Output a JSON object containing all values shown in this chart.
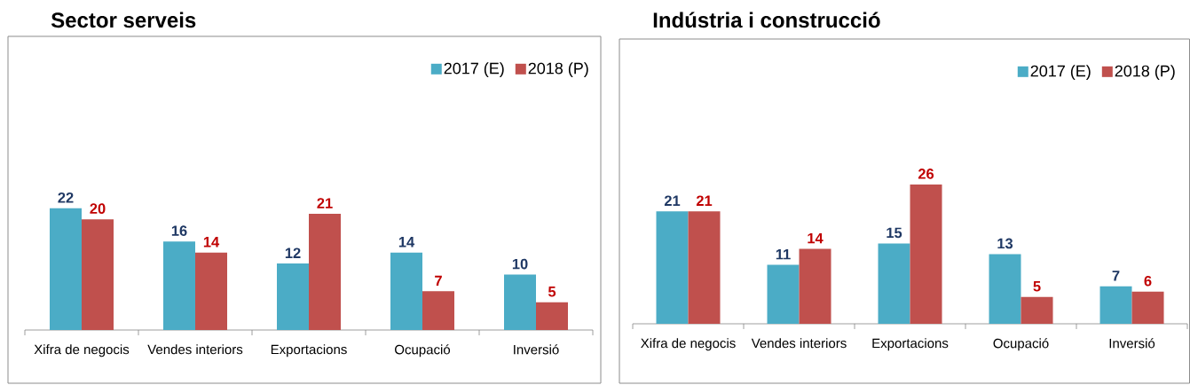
{
  "chart_data": [
    {
      "type": "bar",
      "title": "Sector serveis",
      "categories": [
        "Xifra de negocis",
        "Vendes interiors",
        "Exportacions",
        "Ocupació",
        "Inversió"
      ],
      "series": [
        {
          "name": "2017 (E)",
          "color": "#4bacc6",
          "values": [
            22,
            16,
            12,
            14,
            10
          ]
        },
        {
          "name": "2018 (P)",
          "color": "#c0504d",
          "values": [
            20,
            14,
            21,
            7,
            5
          ]
        }
      ],
      "data_labels": true,
      "legend": "top right"
    },
    {
      "type": "bar",
      "title": "Indústria i construcció",
      "categories": [
        "Xifra de negocis",
        "Vendes interiors",
        "Exportacions",
        "Ocupació",
        "Inversió"
      ],
      "series": [
        {
          "name": "2017 (E)",
          "color": "#4bacc6",
          "values": [
            21,
            11,
            15,
            13,
            7
          ]
        },
        {
          "name": "2018 (P)",
          "color": "#c0504d",
          "values": [
            21,
            14,
            26,
            5,
            6
          ]
        }
      ],
      "data_labels": true,
      "legend": "top right"
    }
  ]
}
